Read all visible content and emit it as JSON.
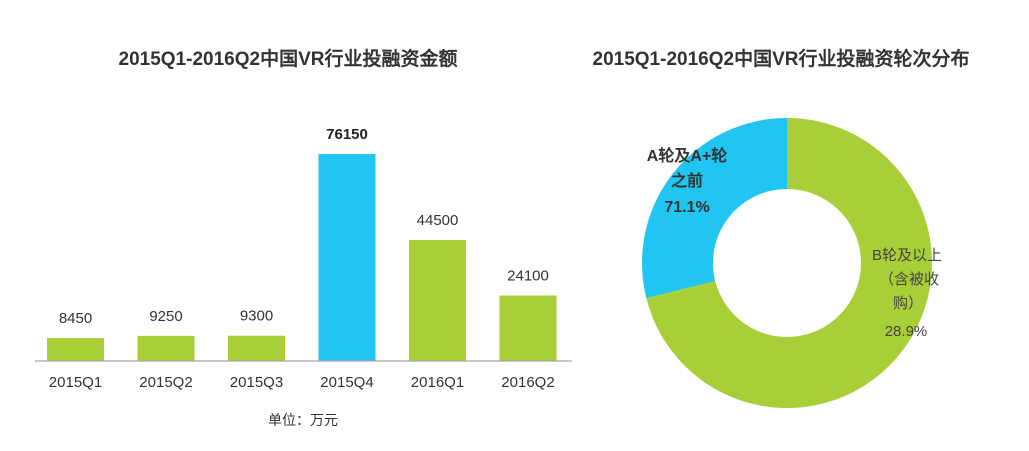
{
  "chart_data": [
    {
      "type": "bar",
      "title": "2015Q1-2016Q2中国VR行业投融资金额",
      "categories": [
        "2015Q1",
        "2015Q2",
        "2015Q3",
        "2015Q4",
        "2016Q1",
        "2016Q2"
      ],
      "values": [
        8450,
        9250,
        9300,
        76150,
        44500,
        24100
      ],
      "bar_colors": [
        "#a9cf38",
        "#a9cf38",
        "#a9cf38",
        "#20c5f1",
        "#a9cf38",
        "#a9cf38"
      ],
      "unit": "单位：万元",
      "grid": false
    },
    {
      "type": "pie",
      "donut": true,
      "title": "2015Q1-2016Q2中国VR行业投融资轮次分布",
      "slices": [
        {
          "label_lines": [
            "A轮及A+轮",
            "之前"
          ],
          "value": 71.1,
          "value_label": "71.1%",
          "color": "#a9cf38"
        },
        {
          "label_lines": [
            "B轮及以上",
            "（含被收",
            "购）"
          ],
          "value": 28.9,
          "value_label": "28.9%",
          "color": "#20c5f1"
        }
      ]
    }
  ]
}
